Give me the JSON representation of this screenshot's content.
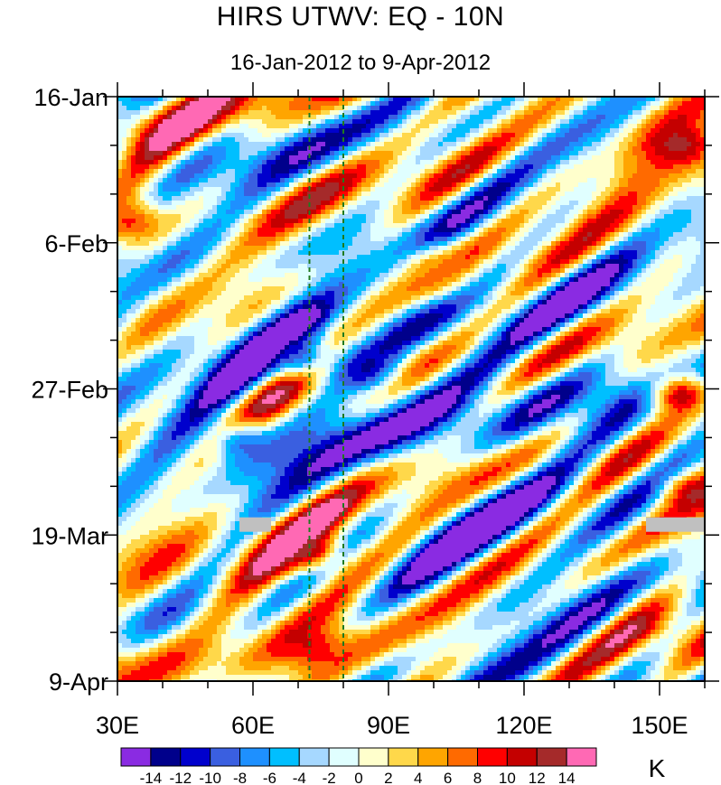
{
  "chart_data": {
    "type": "heatmap",
    "title": "HIRS UTWV: EQ - 10N",
    "subtitle": "16-Jan-2012 to 9-Apr-2012",
    "x_axis": {
      "label": "",
      "range": [
        30,
        160
      ],
      "tick_values": [
        30,
        60,
        90,
        120,
        150
      ],
      "tick_labels": [
        "30E",
        "60E",
        "90E",
        "120E",
        "150E"
      ],
      "minor_step": 10
    },
    "y_axis": {
      "label": "",
      "range_days": [
        0,
        84
      ],
      "direction": "time increases downward",
      "tick_days": [
        0,
        21,
        42,
        63,
        84
      ],
      "tick_labels": [
        "16-Jan",
        "6-Feb",
        "27-Feb",
        "19-Mar",
        "9-Apr"
      ],
      "minor_step_days": 7
    },
    "reference_lines": [
      {
        "lon": 72.5,
        "style": "dashed",
        "color": "#1f7a1f"
      },
      {
        "lon": 80,
        "style": "dashed",
        "color": "#1f7a1f"
      }
    ],
    "missing_data": [
      {
        "lon_range": [
          57,
          64
        ],
        "day": 61.5,
        "color": "#c0c0c0"
      },
      {
        "lon_range": [
          147,
          160
        ],
        "day": 61.5,
        "color": "#c0c0c0"
      }
    ],
    "colorbar": {
      "units": "K",
      "levels": [
        -14,
        -12,
        -10,
        -8,
        -6,
        -4,
        -2,
        0,
        2,
        4,
        6,
        8,
        10,
        12,
        14
      ],
      "level_labels": [
        "-14",
        "-12",
        "-10",
        "-8",
        "-6",
        "-4",
        "-2",
        "0",
        "2",
        "4",
        "6",
        "8",
        "10",
        "12",
        "14"
      ],
      "colors": [
        "#8a2be2",
        "#00008b",
        "#0000cd",
        "#3a5fe0",
        "#1e90ff",
        "#00bfff",
        "#a6d8ff",
        "#e0ffff",
        "#ffffcc",
        "#ffd84a",
        "#ffa500",
        "#ff6a00",
        "#ff0000",
        "#c40000",
        "#a52a2a",
        "#ff69b4"
      ]
    },
    "features": [
      {
        "lon": 72,
        "day": 65,
        "anomaly": 14
      },
      {
        "lon": 73,
        "day": 79,
        "anomaly": 11
      },
      {
        "lon": 155,
        "day": 7,
        "anomaly": 14
      },
      {
        "lon": 155,
        "day": 43,
        "anomaly": 14
      },
      {
        "lon": 158,
        "day": 57,
        "anomaly": 14
      },
      {
        "lon": 33,
        "day": 18,
        "anomaly": 10
      },
      {
        "lon": 85,
        "day": 39,
        "anomaly": -13
      },
      {
        "lon": 70,
        "day": 37,
        "anomaly": -11
      },
      {
        "lon": 58,
        "day": 50,
        "anomaly": -10
      },
      {
        "lon": 100,
        "day": 25,
        "anomaly": 6
      }
    ]
  }
}
